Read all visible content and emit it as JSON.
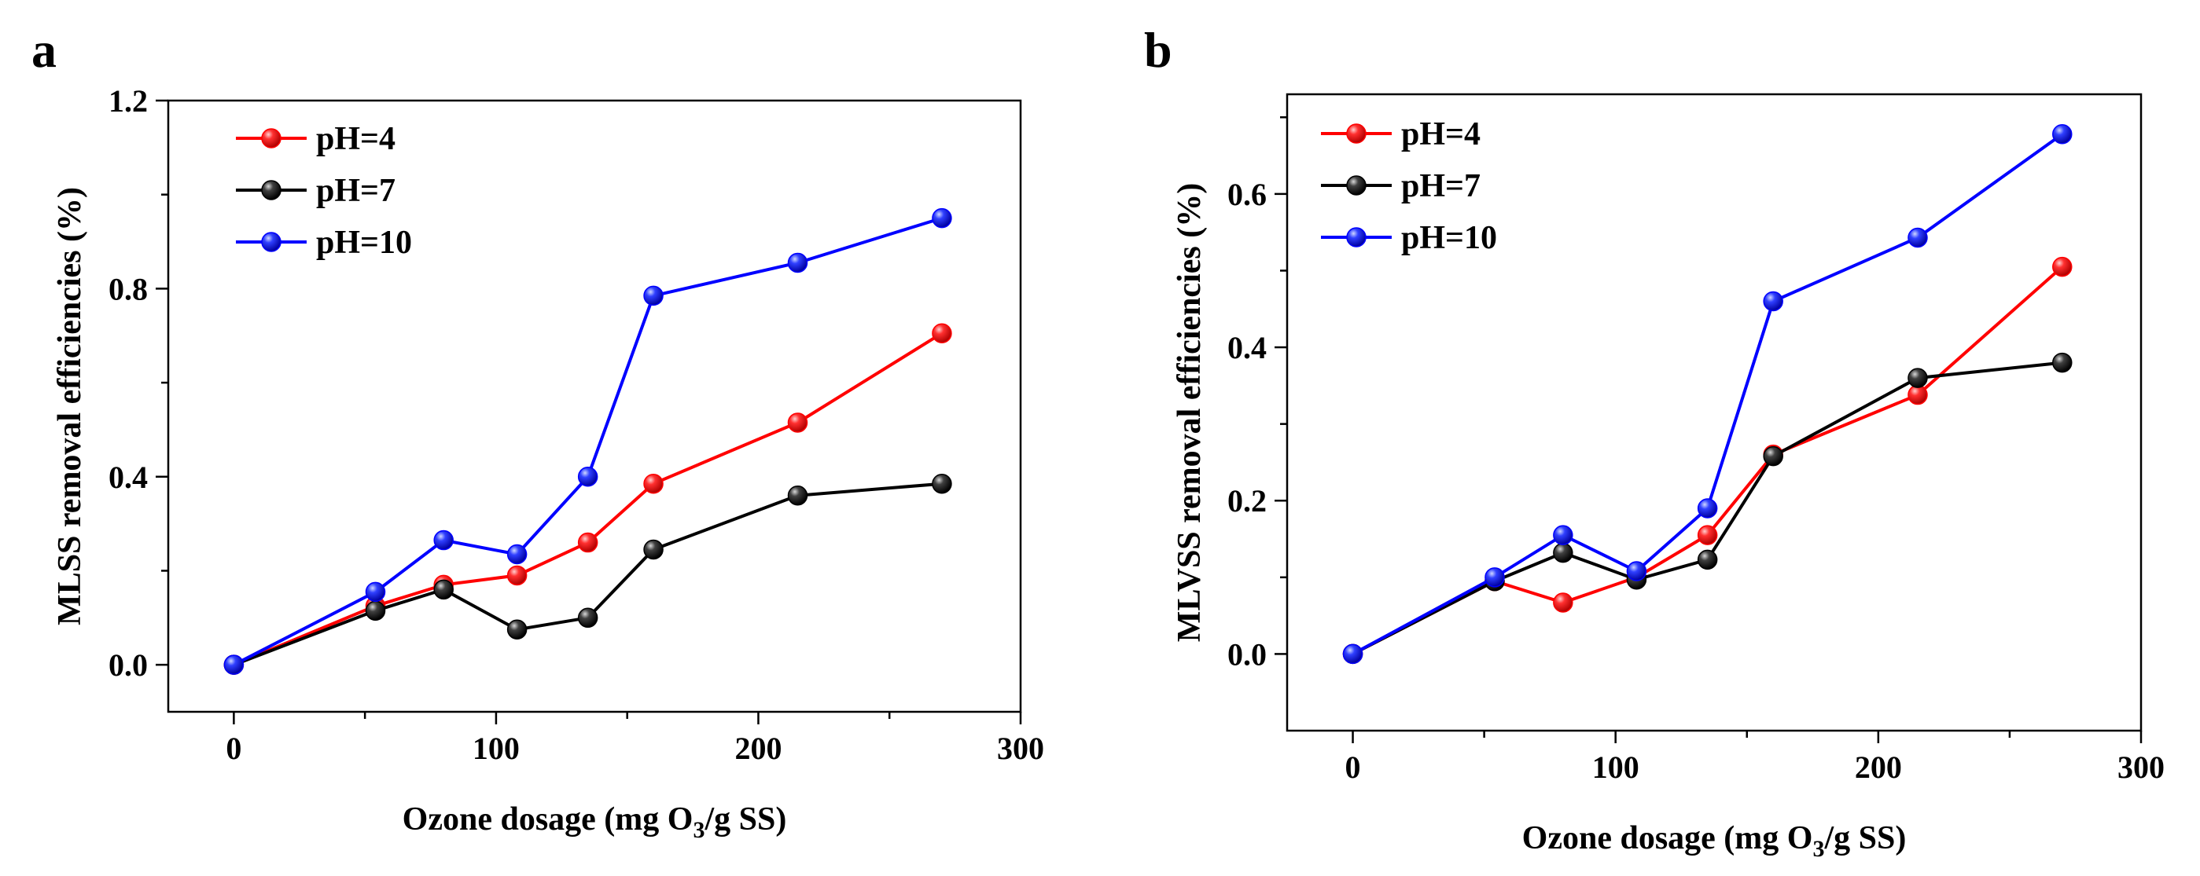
{
  "chart_data": [
    {
      "panel_label": "a",
      "type": "line",
      "xlabel_prefix": "Ozone dosage (mg O",
      "xlabel_sub": "3",
      "xlabel_suffix": "/g SS)",
      "ylabel": "MLSS removal efficiencies (%)",
      "xlim": [
        -25,
        300
      ],
      "ylim": [
        -0.1,
        1.2
      ],
      "xticks": [
        0,
        100,
        200,
        300
      ],
      "xtick_labels": [
        "0",
        "100",
        "200",
        "300"
      ],
      "xminor": [
        50,
        150,
        250
      ],
      "yticks": [
        0.0,
        0.4,
        0.8,
        1.2
      ],
      "ytick_labels": [
        "0.0",
        "0.4",
        "0.8",
        "1.2"
      ],
      "yminor": [
        0.2,
        0.6,
        1.0
      ],
      "legend_position": "top-left",
      "grid": false,
      "x": [
        0,
        54,
        80,
        108,
        135,
        160,
        215,
        270
      ],
      "series": [
        {
          "name": "pH=4",
          "color": "#ff0000",
          "values": [
            0.0,
            0.125,
            0.17,
            0.19,
            0.26,
            0.385,
            0.515,
            0.705
          ]
        },
        {
          "name": "pH=7",
          "color": "#000000",
          "values": [
            0.0,
            0.115,
            0.16,
            0.075,
            0.1,
            0.245,
            0.36,
            0.385
          ]
        },
        {
          "name": "pH=10",
          "color": "#0000ff",
          "values": [
            0.0,
            0.155,
            0.265,
            0.235,
            0.4,
            0.785,
            0.855,
            0.95
          ]
        }
      ]
    },
    {
      "panel_label": "b",
      "type": "line",
      "xlabel_prefix": "Ozone dosage (mg O",
      "xlabel_sub": "3",
      "xlabel_suffix": "/g SS)",
      "ylabel": "MLVSS removal efficiencies (%)",
      "xlim": [
        -25,
        300
      ],
      "ylim": [
        -0.1,
        0.73
      ],
      "xticks": [
        0,
        100,
        200,
        300
      ],
      "xtick_labels": [
        "0",
        "100",
        "200",
        "300"
      ],
      "xminor": [
        50,
        150,
        250
      ],
      "yticks": [
        0.0,
        0.2,
        0.4,
        0.6
      ],
      "ytick_labels": [
        "0.0",
        "0.2",
        "0.4",
        "0.6"
      ],
      "yminor": [
        0.1,
        0.3,
        0.5,
        0.7
      ],
      "legend_position": "top-left",
      "grid": false,
      "x": [
        0,
        54,
        80,
        108,
        135,
        160,
        215,
        270
      ],
      "series": [
        {
          "name": "pH=4",
          "color": "#ff0000",
          "values": [
            0.0,
            0.095,
            0.067,
            0.1,
            0.155,
            0.26,
            0.338,
            0.505
          ]
        },
        {
          "name": "pH=7",
          "color": "#000000",
          "values": [
            0.0,
            0.095,
            0.132,
            0.097,
            0.123,
            0.258,
            0.36,
            0.38
          ]
        },
        {
          "name": "pH=10",
          "color": "#0000ff",
          "values": [
            0.0,
            0.1,
            0.155,
            0.108,
            0.19,
            0.46,
            0.543,
            0.678
          ]
        }
      ]
    }
  ]
}
